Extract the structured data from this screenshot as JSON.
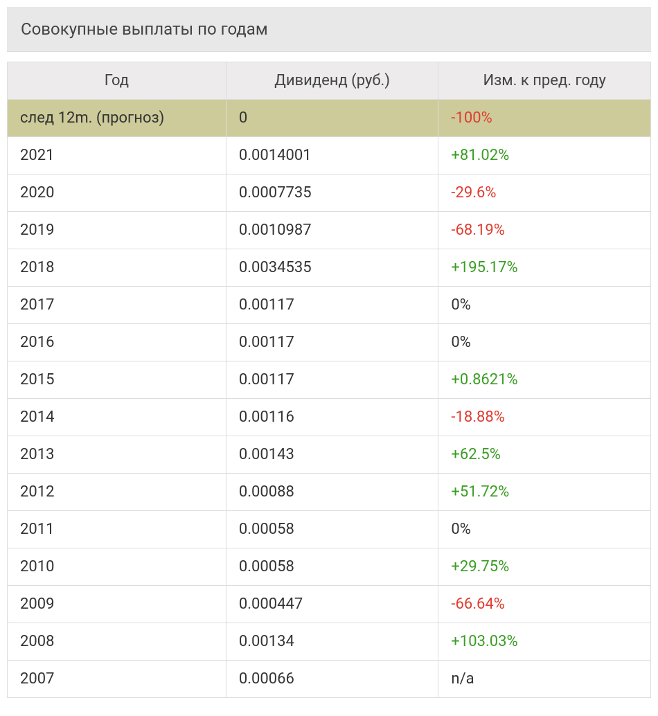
{
  "title": "Совокупные выплаты по годам",
  "columns": {
    "year": "Год",
    "dividend": "Дивиденд (руб.)",
    "change": "Изм. к пред. году"
  },
  "colors": {
    "title_bg": "#e8e8e8",
    "header_bg": "#edebeb",
    "highlight_bg": "#cdcb9a",
    "border": "#dddddd",
    "text": "#333333",
    "positive": "#3a9d23",
    "negative": "#e03c31",
    "neutral": "#333333"
  },
  "rows": [
    {
      "year": "след 12m. (прогноз)",
      "dividend": "0",
      "change": "-100%",
      "sign": "negative",
      "highlight": true
    },
    {
      "year": "2021",
      "dividend": "0.0014001",
      "change": "+81.02%",
      "sign": "positive",
      "highlight": false
    },
    {
      "year": "2020",
      "dividend": "0.0007735",
      "change": "-29.6%",
      "sign": "negative",
      "highlight": false
    },
    {
      "year": "2019",
      "dividend": "0.0010987",
      "change": "-68.19%",
      "sign": "negative",
      "highlight": false
    },
    {
      "year": "2018",
      "dividend": "0.0034535",
      "change": "+195.17%",
      "sign": "positive",
      "highlight": false
    },
    {
      "year": "2017",
      "dividend": "0.00117",
      "change": "0%",
      "sign": "neutral",
      "highlight": false
    },
    {
      "year": "2016",
      "dividend": "0.00117",
      "change": "0%",
      "sign": "neutral",
      "highlight": false
    },
    {
      "year": "2015",
      "dividend": "0.00117",
      "change": "+0.8621%",
      "sign": "positive",
      "highlight": false
    },
    {
      "year": "2014",
      "dividend": "0.00116",
      "change": "-18.88%",
      "sign": "negative",
      "highlight": false
    },
    {
      "year": "2013",
      "dividend": "0.00143",
      "change": "+62.5%",
      "sign": "positive",
      "highlight": false
    },
    {
      "year": "2012",
      "dividend": "0.00088",
      "change": "+51.72%",
      "sign": "positive",
      "highlight": false
    },
    {
      "year": "2011",
      "dividend": "0.00058",
      "change": "0%",
      "sign": "neutral",
      "highlight": false
    },
    {
      "year": "2010",
      "dividend": "0.00058",
      "change": "+29.75%",
      "sign": "positive",
      "highlight": false
    },
    {
      "year": "2009",
      "dividend": "0.000447",
      "change": "-66.64%",
      "sign": "negative",
      "highlight": false
    },
    {
      "year": "2008",
      "dividend": "0.00134",
      "change": "+103.03%",
      "sign": "positive",
      "highlight": false
    },
    {
      "year": "2007",
      "dividend": "0.00066",
      "change": "n/a",
      "sign": "neutral",
      "highlight": false
    }
  ]
}
